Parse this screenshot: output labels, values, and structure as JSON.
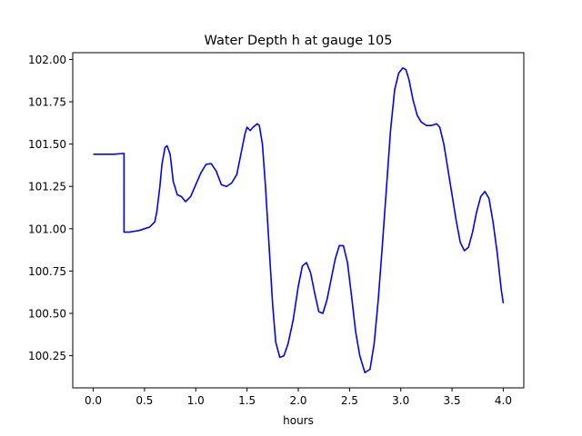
{
  "chart_data": {
    "type": "line",
    "title": "Water Depth h at gauge 105",
    "xlabel": "hours",
    "ylabel": "",
    "xlim": [
      -0.2,
      4.2
    ],
    "ylim": [
      100.06,
      102.04
    ],
    "xticks": [
      0.0,
      0.5,
      1.0,
      1.5,
      2.0,
      2.5,
      3.0,
      3.5,
      4.0
    ],
    "xtick_labels": [
      "0.0",
      "0.5",
      "1.0",
      "1.5",
      "2.0",
      "2.5",
      "3.0",
      "3.5",
      "4.0"
    ],
    "yticks": [
      100.25,
      100.5,
      100.75,
      101.0,
      101.25,
      101.5,
      101.75,
      102.0
    ],
    "ytick_labels": [
      "100.25",
      "100.50",
      "100.75",
      "101.00",
      "101.25",
      "101.50",
      "101.75",
      "102.00"
    ],
    "grid": false,
    "line_color": "#0000ff",
    "series": [
      {
        "x": [
          0.0,
          0.1,
          0.2,
          0.3,
          0.3,
          0.35,
          0.4,
          0.45,
          0.5,
          0.55,
          0.6,
          0.62,
          0.65,
          0.67,
          0.7,
          0.72,
          0.75,
          0.78,
          0.82,
          0.86,
          0.9,
          0.95,
          1.0,
          1.05,
          1.1,
          1.15,
          1.2,
          1.25,
          1.3,
          1.35,
          1.4,
          1.45,
          1.48,
          1.5,
          1.53,
          1.56,
          1.6,
          1.62,
          1.65,
          1.68,
          1.72,
          1.75,
          1.78,
          1.82,
          1.86,
          1.9,
          1.95,
          2.0,
          2.04,
          2.08,
          2.12,
          2.16,
          2.2,
          2.24,
          2.28,
          2.32,
          2.36,
          2.4,
          2.44,
          2.48,
          2.52,
          2.56,
          2.6,
          2.65,
          2.7,
          2.74,
          2.78,
          2.82,
          2.86,
          2.9,
          2.94,
          2.98,
          3.02,
          3.05,
          3.08,
          3.12,
          3.16,
          3.2,
          3.25,
          3.3,
          3.35,
          3.38,
          3.42,
          3.46,
          3.5,
          3.54,
          3.58,
          3.62,
          3.66,
          3.7,
          3.74,
          3.78,
          3.82,
          3.86,
          3.9,
          3.94,
          3.98,
          4.0
        ],
        "y": [
          101.44,
          101.44,
          101.44,
          101.445,
          100.98,
          100.98,
          100.985,
          100.99,
          101.0,
          101.01,
          101.04,
          101.1,
          101.25,
          101.38,
          101.48,
          101.49,
          101.44,
          101.28,
          101.2,
          101.19,
          101.16,
          101.19,
          101.26,
          101.33,
          101.38,
          101.385,
          101.34,
          101.26,
          101.25,
          101.27,
          101.32,
          101.47,
          101.56,
          101.6,
          101.58,
          101.6,
          101.62,
          101.61,
          101.5,
          101.25,
          100.85,
          100.55,
          100.33,
          100.24,
          100.25,
          100.32,
          100.46,
          100.66,
          100.78,
          100.8,
          100.74,
          100.62,
          100.51,
          100.5,
          100.58,
          100.7,
          100.82,
          100.9,
          100.9,
          100.8,
          100.6,
          100.39,
          100.25,
          100.15,
          100.17,
          100.32,
          100.58,
          100.9,
          101.24,
          101.58,
          101.82,
          101.92,
          101.95,
          101.94,
          101.88,
          101.76,
          101.67,
          101.63,
          101.61,
          101.61,
          101.62,
          101.6,
          101.5,
          101.35,
          101.2,
          101.05,
          100.92,
          100.87,
          100.89,
          100.98,
          101.1,
          101.19,
          101.22,
          101.18,
          101.04,
          100.86,
          100.64,
          100.56
        ]
      }
    ]
  }
}
